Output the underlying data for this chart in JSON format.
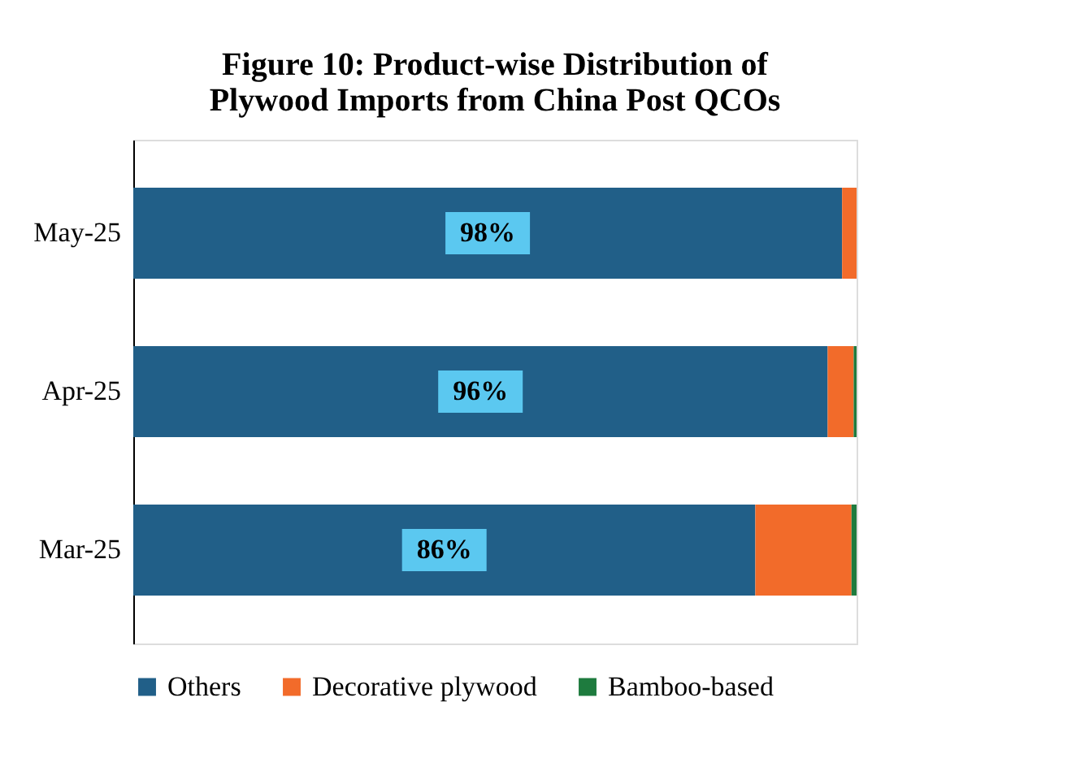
{
  "chart_data": {
    "type": "bar",
    "orientation": "horizontal",
    "stacked": true,
    "title": "Figure 10: Product-wise Distribution of\nPlywood Imports from China Post QCOs",
    "categories": [
      "May-25",
      "Apr-25",
      "Mar-25"
    ],
    "series": [
      {
        "name": "Others",
        "color": "#215f88",
        "values": [
          98,
          96,
          86
        ],
        "value_labels": [
          "98%",
          "96%",
          "86%"
        ]
      },
      {
        "name": "Decorative plywood",
        "color": "#f26b2a",
        "values": [
          2,
          3.6,
          13.3
        ]
      },
      {
        "name": "Bamboo-based",
        "color": "#1e7b3e",
        "values": [
          0,
          0.4,
          0.7
        ]
      }
    ],
    "tick_labels": "y",
    "legend": "bottom",
    "grid": false
  }
}
